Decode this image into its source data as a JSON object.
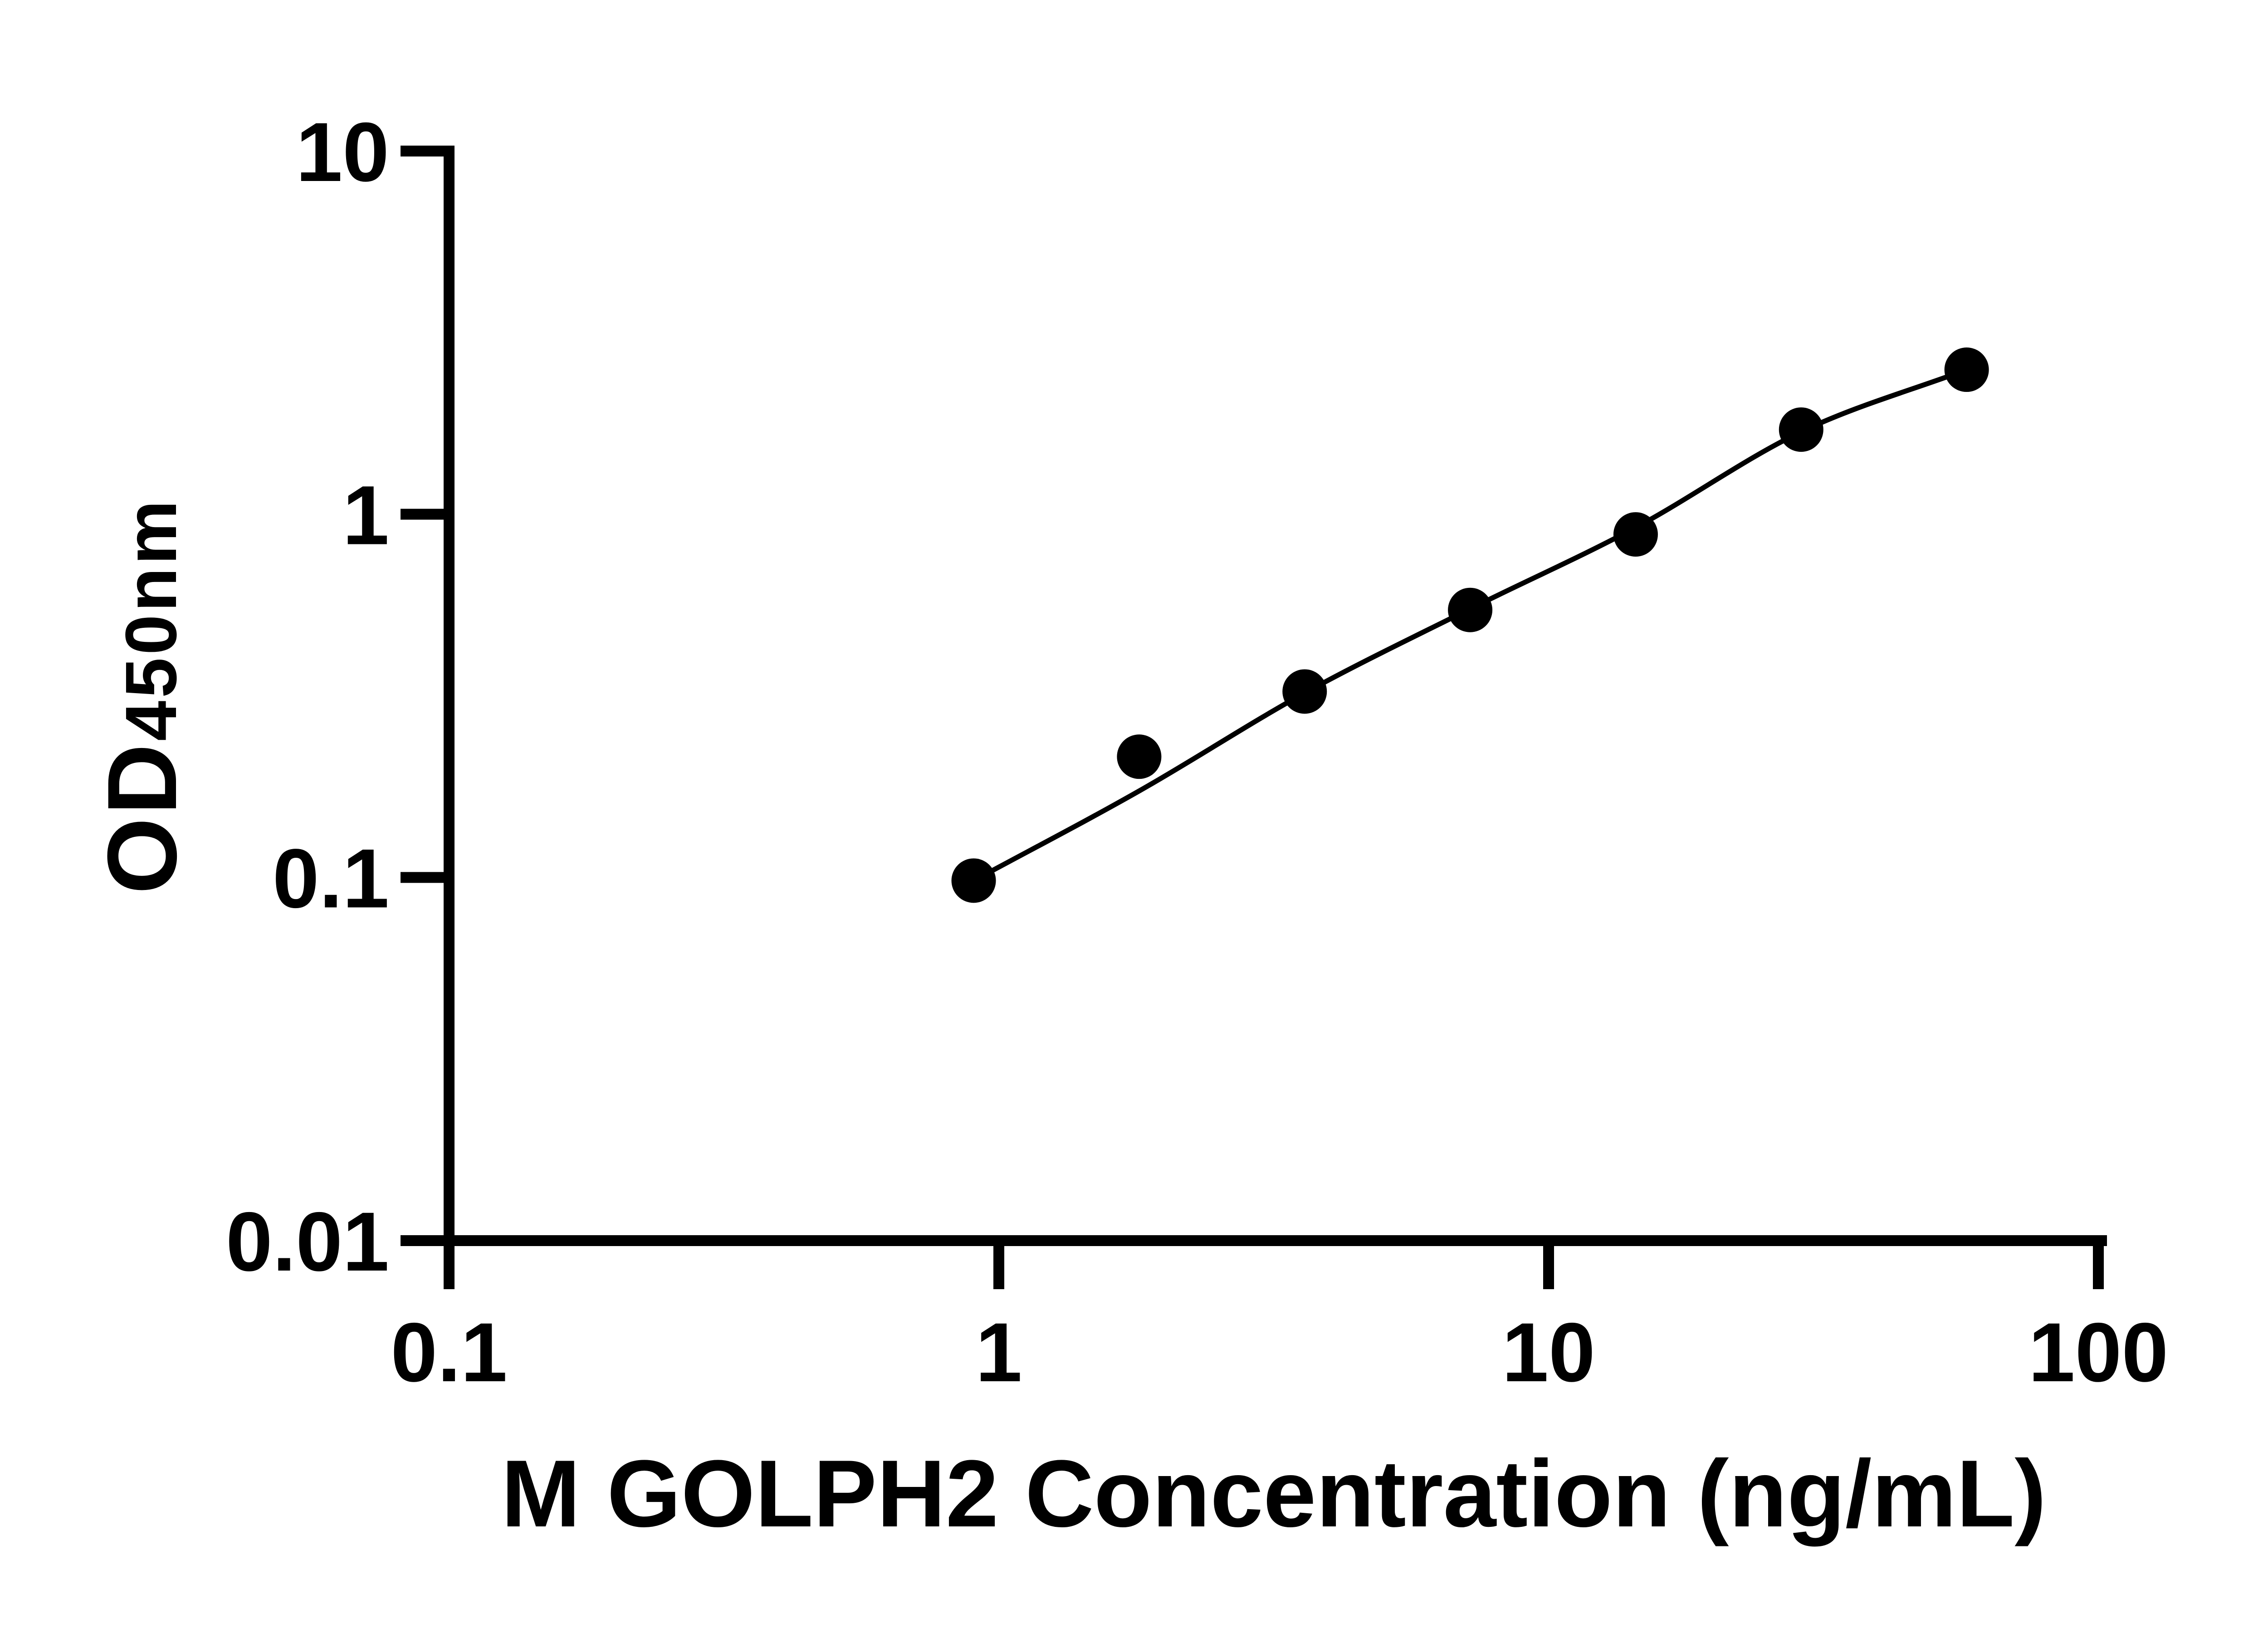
{
  "chart_data": {
    "type": "scatter",
    "title": "",
    "xlabel": "M GOLPH2 Concentration (ng/mL)",
    "ylabel": "OD450nm",
    "ylabel_main": "OD",
    "ylabel_sub": "450nm",
    "x_scale": "log",
    "y_scale": "log",
    "xlim": [
      0.1,
      100
    ],
    "ylim": [
      0.01,
      10
    ],
    "grid": false,
    "legend": false,
    "axis_color": "#000000",
    "marker_color": "#000000",
    "line_color": "#000000",
    "x_ticks": [
      {
        "value": 0.1,
        "label": "0.1"
      },
      {
        "value": 1,
        "label": "1"
      },
      {
        "value": 10,
        "label": "10"
      },
      {
        "value": 100,
        "label": "100"
      }
    ],
    "y_ticks": [
      {
        "value": 10,
        "label": "10"
      },
      {
        "value": 1,
        "label": "1"
      },
      {
        "value": 0.1,
        "label": "0.1"
      },
      {
        "value": 0.01,
        "label": "0.01"
      }
    ],
    "points": [
      {
        "x": 0.9,
        "y": 0.098
      },
      {
        "x": 1.8,
        "y": 0.215
      },
      {
        "x": 3.6,
        "y": 0.325
      },
      {
        "x": 7.2,
        "y": 0.545
      },
      {
        "x": 14.4,
        "y": 0.88
      },
      {
        "x": 28.8,
        "y": 1.71
      },
      {
        "x": 57.6,
        "y": 2.5
      }
    ],
    "fit_curve": {
      "type": "smooth_fit_through_samples",
      "samples": [
        {
          "x": 0.9,
          "y": 0.098
        },
        {
          "x": 1.8,
          "y": 0.173
        },
        {
          "x": 3.6,
          "y": 0.322
        },
        {
          "x": 7.2,
          "y": 0.549
        },
        {
          "x": 14.4,
          "y": 0.919
        },
        {
          "x": 28.8,
          "y": 1.687
        },
        {
          "x": 57.6,
          "y": 2.5
        }
      ]
    }
  }
}
